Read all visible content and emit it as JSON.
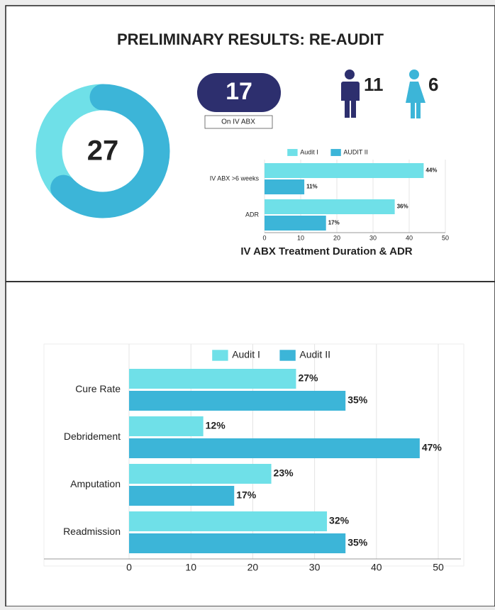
{
  "header": {
    "title": "PRELIMINARY RESULTS: RE-AUDIT"
  },
  "stats": {
    "iv_abx": {
      "value": 17,
      "label": "On IV ABX"
    },
    "male": 11,
    "female": 6
  },
  "chart_data": [
    {
      "type": "pie",
      "donut": true,
      "total": 27,
      "values": [
        17,
        10
      ],
      "colors": [
        "#3cb5d8",
        "#6fe0e8"
      ]
    },
    {
      "type": "bar",
      "orientation": "horizontal",
      "title": "IV ABX Treatment Duration & ADR",
      "categories": [
        "IV ABX >6 weeks",
        "ADR"
      ],
      "series": [
        {
          "name": "Audit I",
          "color": "#6fe0e8",
          "values": [
            44,
            36
          ],
          "value_labels": [
            "44%",
            "36%"
          ]
        },
        {
          "name": "AUDIT II",
          "color": "#3cb5d8",
          "values": [
            11,
            17
          ],
          "value_labels": [
            "11%",
            "17%"
          ]
        }
      ],
      "xlim": [
        0,
        50
      ],
      "xticks": [
        0,
        10,
        20,
        30,
        40,
        50
      ],
      "grid": true,
      "legend": "top"
    },
    {
      "type": "bar",
      "orientation": "horizontal",
      "categories": [
        "Cure Rate",
        "Debridement",
        "Amputation",
        "Readmission"
      ],
      "series": [
        {
          "name": "Audit I",
          "color": "#6fe0e8",
          "values": [
            27,
            12,
            23,
            32
          ],
          "value_labels": [
            "27%",
            "12%",
            "23%",
            "32%"
          ]
        },
        {
          "name": "Audit II",
          "color": "#3cb5d8",
          "values": [
            35,
            47,
            17,
            35
          ],
          "value_labels": [
            "35%",
            "47%",
            "17%",
            "35%"
          ]
        }
      ],
      "xlim": [
        0,
        50
      ],
      "xticks": [
        0,
        10,
        20,
        30,
        40,
        50
      ],
      "grid": true,
      "legend": "top"
    }
  ]
}
